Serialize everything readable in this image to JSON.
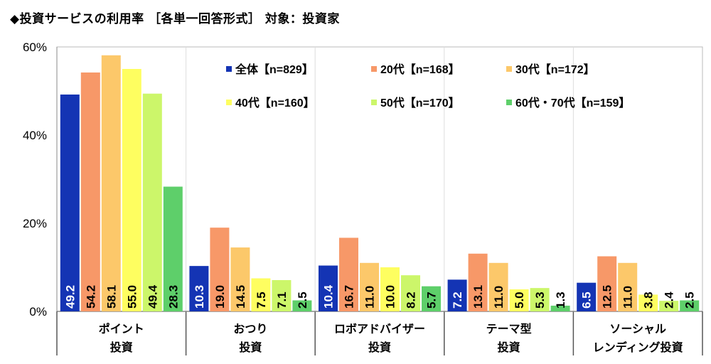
{
  "title": "◆投資サービスの利用率 ［各単一回答形式］ 対象：投資家",
  "chart_data": {
    "type": "bar",
    "ylim": [
      0,
      60
    ],
    "yticks": [
      "0%",
      "20%",
      "40%",
      "60%"
    ],
    "ytick_values": [
      0,
      20,
      40,
      60
    ],
    "grid": "vertical separators between categories",
    "legend_placement": "top-center (inside plot)",
    "categories": [
      [
        "ポイント",
        "投資"
      ],
      [
        "おつり",
        "投資"
      ],
      [
        "ロボアドバイザー",
        "投資"
      ],
      [
        "テーマ型",
        "投資"
      ],
      [
        "ソーシャル",
        "レンディング投資"
      ]
    ],
    "series": [
      {
        "name": "全体【n=829】",
        "color": "#1434b4",
        "label_color": "#ffffff",
        "values": [
          49.2,
          10.3,
          10.4,
          7.2,
          6.5
        ]
      },
      {
        "name": "20代【n=168】",
        "color": "#f79868",
        "label_color": "#000000",
        "values": [
          54.2,
          19.0,
          16.7,
          13.1,
          12.5
        ]
      },
      {
        "name": "30代【n=172】",
        "color": "#fcc86a",
        "label_color": "#000000",
        "values": [
          58.1,
          14.5,
          11.0,
          11.0,
          11.0
        ]
      },
      {
        "name": "40代【n=160】",
        "color": "#fefe60",
        "label_color": "#000000",
        "values": [
          55.0,
          7.5,
          10.0,
          5.0,
          3.8
        ]
      },
      {
        "name": "50代【n=170】",
        "color": "#ccf66a",
        "label_color": "#000000",
        "values": [
          49.4,
          7.1,
          8.2,
          5.3,
          2.4
        ]
      },
      {
        "name": "60代・70代【n=159】",
        "color": "#5ecf6a",
        "label_color": "#000000",
        "values": [
          28.3,
          2.5,
          5.7,
          1.3,
          2.5
        ]
      }
    ]
  }
}
